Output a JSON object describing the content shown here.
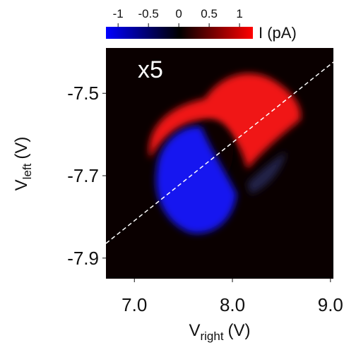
{
  "chart_data": {
    "type": "heatmap",
    "annotation": "x5",
    "xlabel": {
      "symbol": "V",
      "subscript": "right",
      "unit": "(V)"
    },
    "ylabel": {
      "symbol": "V",
      "subscript": "left",
      "unit": "(V)"
    },
    "xlim": [
      6.71,
      9.03
    ],
    "xticks": [
      {
        "value": 7,
        "label": "7.0"
      },
      {
        "value": 8,
        "label": "8.0"
      },
      {
        "value": 9,
        "label": "9.0"
      }
    ],
    "ylim": [
      -7.95,
      -7.39
    ],
    "yticks": [
      -7.5,
      -7.7,
      -7.9
    ],
    "colorbar": {
      "label": "I (pA)",
      "clim": [
        -1.2,
        1.22
      ],
      "ticks": [
        -1,
        -0.5,
        0,
        0.5,
        1
      ],
      "colors": [
        "#0000ff",
        "#000000",
        "#ff0000"
      ]
    }
  }
}
